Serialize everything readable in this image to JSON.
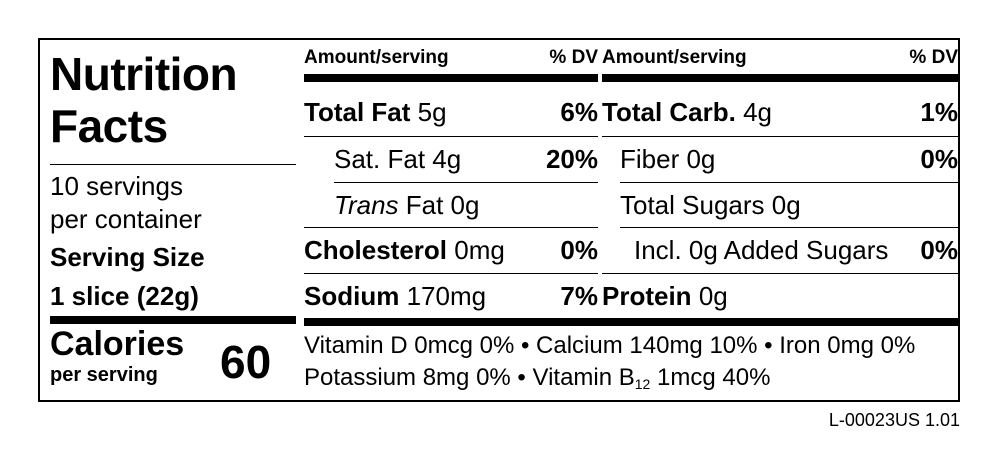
{
  "title_line1": "Nutrition",
  "title_line2": "Facts",
  "servings_line1": "10 servings",
  "servings_line2": "per container",
  "serving_size_label": "Serving Size",
  "serving_size_value": "1 slice (22g)",
  "calories_label": "Calories",
  "calories_sub": "per serving",
  "calories_value": "60",
  "header": {
    "amount": "Amount/serving",
    "dv": "% DV"
  },
  "left_rows": {
    "total_fat": {
      "name": "Total Fat",
      "amount": "5g",
      "dv": "6%"
    },
    "sat_fat": {
      "name": "Sat. Fat 4g",
      "dv": "20%"
    },
    "trans_fat": {
      "name_italic": "Trans",
      "name_rest": "Fat 0g"
    },
    "cholesterol": {
      "name": "Cholesterol",
      "amount": "0mg",
      "dv": "0%"
    },
    "sodium": {
      "name": "Sodium",
      "amount": "170mg",
      "dv": "7%"
    }
  },
  "right_rows": {
    "total_carb": {
      "name": "Total Carb.",
      "amount": "4g",
      "dv": "1%"
    },
    "fiber": {
      "name": "Fiber 0g",
      "dv": "0%"
    },
    "total_sugars": {
      "name": "Total Sugars 0g"
    },
    "added_sugars": {
      "name": "Incl. 0g Added Sugars",
      "dv": "0%"
    },
    "protein": {
      "name": "Protein",
      "amount": "0g"
    }
  },
  "vitamins_line1": "Vitamin D 0mcg 0% • Calcium 140mg 10% • Iron 0mg 0%",
  "vitamins_line2_a": "Potassium 8mg 0% • Vitamin B",
  "vitamins_line2_sub": "12",
  "vitamins_line2_b": " 1mcg 40%",
  "label_code": "L-00023US 1.01"
}
